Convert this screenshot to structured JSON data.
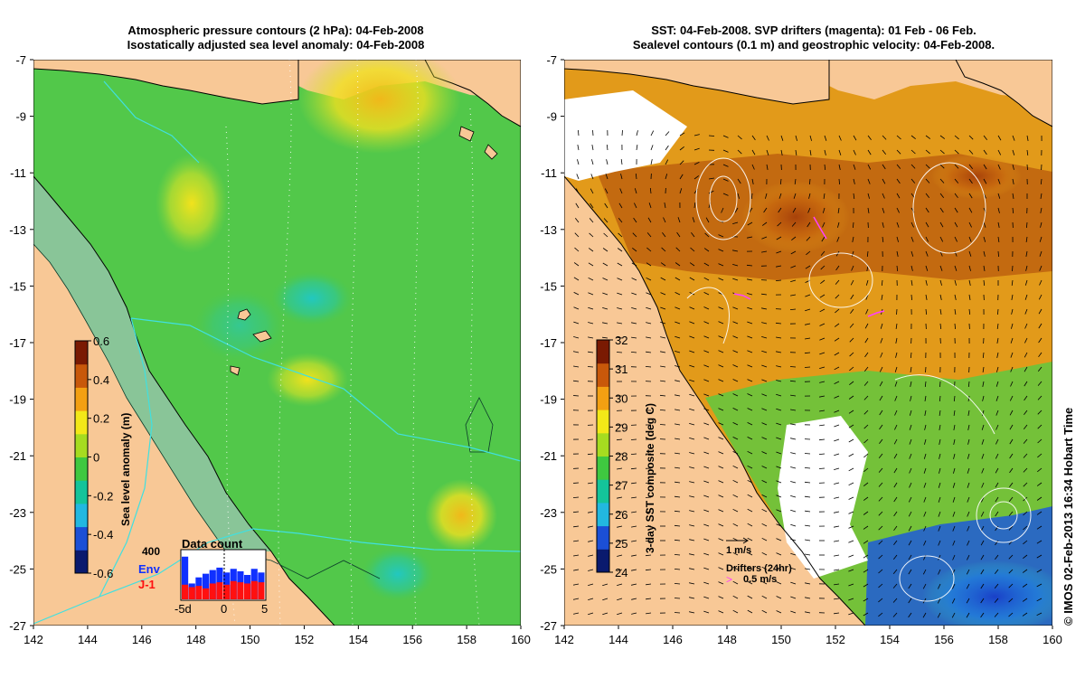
{
  "left_panel": {
    "title_line1": "Atmospheric pressure contours (2 hPa): 04-Feb-2008",
    "title_line2": "Isostatically adjusted sea level anomaly: 04-Feb-2008",
    "colorbar": {
      "label": "Sea level anomaly (m)",
      "ticks": [
        "0.6",
        "0.4",
        "0.2",
        "0",
        "-0.2",
        "-0.4",
        "-0.6"
      ],
      "colors": [
        "#0a1a6e",
        "#1b4fd6",
        "#22b8e0",
        "#14c49a",
        "#3fc840",
        "#a6dc20",
        "#f3e818",
        "#f3a012",
        "#c8580a",
        "#7a1a02"
      ]
    },
    "data_count": {
      "title": "Data count",
      "max_label": "400",
      "env_label": "Env",
      "j1_label": "J-1",
      "x_ticks": [
        "-5d",
        "0",
        "5"
      ],
      "env_color": "#1030ff",
      "j1_color": "#ff1010",
      "env": [
        350,
        130,
        180,
        210,
        240,
        260,
        220,
        250,
        230,
        200,
        250,
        220
      ],
      "j1": [
        120,
        100,
        110,
        90,
        130,
        140,
        120,
        150,
        140,
        130,
        150,
        140
      ]
    }
  },
  "right_panel": {
    "title_line1": "SST: 04-Feb-2008. SVP drifters (magenta): 01 Feb - 06 Feb.",
    "title_line2": "Sealevel contours (0.1 m) and geostrophic velocity: 04-Feb-2008.",
    "colorbar": {
      "label": "3-day SST composite (deg C)",
      "ticks": [
        "32",
        "31",
        "30",
        "29",
        "28",
        "27",
        "26",
        "25",
        "24"
      ],
      "colors": [
        "#0a1a6e",
        "#1b4fd6",
        "#22b8e0",
        "#14c49a",
        "#3fc840",
        "#a6dc20",
        "#f3e818",
        "#f3a012",
        "#c8580a",
        "#7a1a02"
      ]
    },
    "velocity_scale_label": "1 m/s",
    "drifters_label": "Drifters (24hr)",
    "drifter_speed_label": "0.5 m/s",
    "drifter_marker": ">"
  },
  "x_ticks": [
    "142",
    "144",
    "146",
    "148",
    "150",
    "152",
    "154",
    "156",
    "158",
    "160"
  ],
  "y_ticks": [
    "-7",
    "-9",
    "-11",
    "-13",
    "-15",
    "-17",
    "-19",
    "-21",
    "-23",
    "-25",
    "-27"
  ],
  "credit": "© IMOS 02-Feb-2013 16:34 Hobart Time",
  "land_color": "#f8c896",
  "ocean_color": "#4fc84a"
}
